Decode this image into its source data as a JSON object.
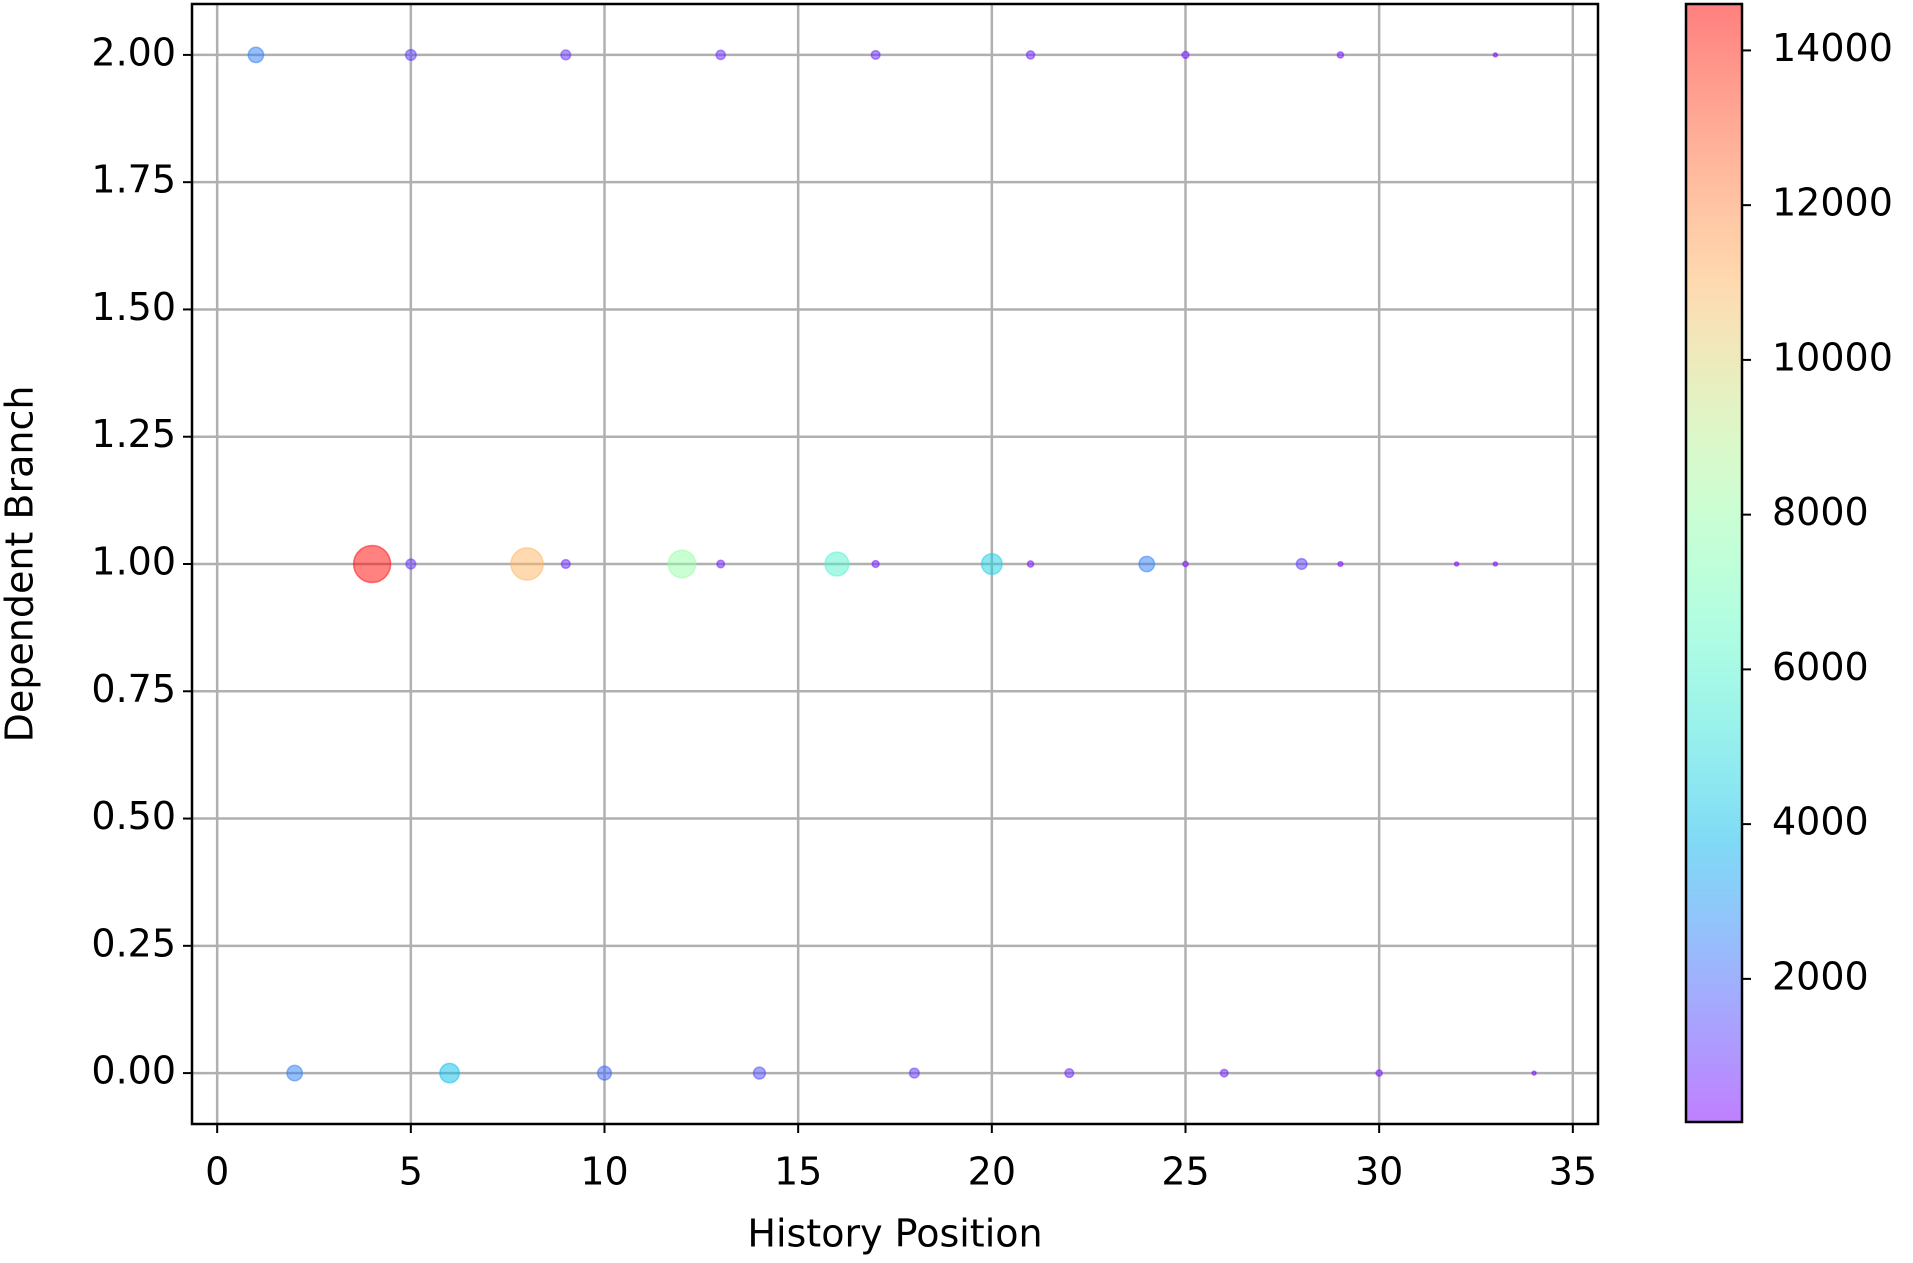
{
  "chart_data": {
    "type": "scatter",
    "xlabel": "History Position",
    "ylabel": "Dependent Branch",
    "xlim": [
      -0.65,
      35.65
    ],
    "ylim": [
      -0.1,
      2.1
    ],
    "xticks": [
      0,
      5,
      10,
      15,
      20,
      25,
      30,
      35
    ],
    "yticks": [
      {
        "value": 0,
        "label": "0.00"
      },
      {
        "value": 0.25,
        "label": "0.25"
      },
      {
        "value": 0.5,
        "label": "0.50"
      },
      {
        "value": 0.75,
        "label": "0.75"
      },
      {
        "value": 1,
        "label": "1.00"
      },
      {
        "value": 1.25,
        "label": "1.25"
      },
      {
        "value": 1.5,
        "label": "1.50"
      },
      {
        "value": 1.75,
        "label": "1.75"
      },
      {
        "value": 2,
        "label": "2.00"
      }
    ],
    "grid": true,
    "colormap": "rainbow",
    "alpha": 0.5,
    "clim": [
      150,
      14600
    ],
    "cticks": [
      2000,
      4000,
      6000,
      8000,
      10000,
      12000,
      14000
    ],
    "series": [
      {
        "x": [
          1,
          5,
          9,
          13,
          17,
          21,
          25,
          29,
          33,
          4,
          5,
          8,
          9,
          12,
          13,
          16,
          17,
          20,
          21,
          24,
          25,
          28,
          29,
          32,
          33,
          2,
          6,
          10,
          14,
          18,
          22,
          26,
          30,
          34
        ],
        "y": [
          2,
          2,
          2,
          2,
          2,
          2,
          2,
          2,
          2,
          1,
          1,
          1,
          1,
          1,
          1,
          1,
          1,
          1,
          1,
          1,
          1,
          1,
          1,
          1,
          1,
          0,
          0,
          0,
          0,
          0,
          0,
          0,
          0,
          0
        ],
        "values": [
          2500,
          1200,
          1000,
          900,
          800,
          700,
          500,
          400,
          150,
          14500,
          1000,
          11000,
          800,
          8000,
          600,
          6000,
          500,
          4500,
          400,
          2500,
          300,
          1200,
          250,
          150,
          100,
          2500,
          4000,
          2000,
          1500,
          1000,
          800,
          600,
          400,
          100
        ]
      }
    ]
  }
}
